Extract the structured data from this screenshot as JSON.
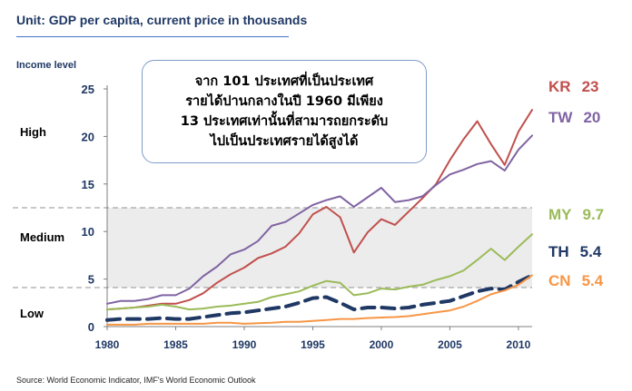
{
  "header": {
    "title": "Unit: GDP per capita, current price in thousands",
    "income_label": "Income level"
  },
  "bands": {
    "high": "High",
    "medium": "Medium",
    "low": "Low"
  },
  "callout": {
    "lines": [
      "จาก 101 ประเทศที่เป็นประเทศ",
      "รายได้ปานกลางในปี 1960 มีเพียง",
      "13 ประเทศเท่านั้นที่สามารถยกระดับ",
      "ไปเป็นประเทศรายได้สูงได้"
    ]
  },
  "source": "Source: World Economic Indicator, IMF's World Economic Outlook",
  "colors": {
    "KR": "#c0504d",
    "TW": "#8064a2",
    "MY": "#9bbb59",
    "TH": "#1f3864",
    "CN": "#f79646",
    "title": "#1f3864",
    "band": "#ececec"
  },
  "chart_data": {
    "type": "line",
    "xlim": [
      1980,
      2011
    ],
    "ylim": [
      0,
      25
    ],
    "x_ticks": [
      1980,
      1985,
      1990,
      1995,
      2000,
      2005,
      2010
    ],
    "y_ticks": [
      0,
      5,
      10,
      15,
      20,
      25
    ],
    "middle_income_band": [
      4.1,
      12.5
    ],
    "x": [
      1980,
      1981,
      1982,
      1983,
      1984,
      1985,
      1986,
      1987,
      1988,
      1989,
      1990,
      1991,
      1992,
      1993,
      1994,
      1995,
      1996,
      1997,
      1998,
      1999,
      2000,
      2001,
      2002,
      2003,
      2004,
      2005,
      2006,
      2007,
      2008,
      2009,
      2010,
      2011
    ],
    "series": [
      {
        "name": "KR",
        "end_label": "23",
        "color": "#c0504d",
        "dashed": false,
        "values": [
          1.8,
          1.9,
          2.0,
          2.2,
          2.4,
          2.4,
          2.8,
          3.5,
          4.6,
          5.5,
          6.2,
          7.2,
          7.7,
          8.4,
          9.8,
          11.8,
          12.6,
          11.5,
          7.8,
          9.9,
          11.3,
          10.7,
          12.1,
          13.5,
          15.0,
          17.5,
          19.7,
          21.6,
          19.2,
          17.0,
          20.5,
          22.8
        ]
      },
      {
        "name": "TW",
        "end_label": "20",
        "color": "#8064a2",
        "dashed": false,
        "values": [
          2.4,
          2.7,
          2.7,
          2.9,
          3.3,
          3.3,
          4.0,
          5.3,
          6.3,
          7.6,
          8.1,
          9.0,
          10.6,
          11.0,
          11.9,
          12.8,
          13.3,
          13.7,
          12.6,
          13.6,
          14.6,
          13.1,
          13.3,
          13.7,
          14.9,
          16.0,
          16.5,
          17.1,
          17.4,
          16.4,
          18.6,
          20.1
        ]
      },
      {
        "name": "MY",
        "end_label": "9.7",
        "color": "#9bbb59",
        "dashed": false,
        "values": [
          1.8,
          1.9,
          2.0,
          2.1,
          2.3,
          2.1,
          1.8,
          1.9,
          2.1,
          2.2,
          2.4,
          2.6,
          3.1,
          3.4,
          3.7,
          4.3,
          4.8,
          4.6,
          3.3,
          3.5,
          4.0,
          3.9,
          4.2,
          4.4,
          4.9,
          5.3,
          5.9,
          7.0,
          8.2,
          7.0,
          8.4,
          9.7
        ]
      },
      {
        "name": "TH",
        "end_label": "5.4",
        "color": "#1f3864",
        "dashed": true,
        "values": [
          0.7,
          0.8,
          0.8,
          0.8,
          0.9,
          0.8,
          0.8,
          1.0,
          1.2,
          1.4,
          1.5,
          1.7,
          1.9,
          2.1,
          2.5,
          3.0,
          3.1,
          2.5,
          1.8,
          2.0,
          2.0,
          1.9,
          2.0,
          2.3,
          2.5,
          2.7,
          3.2,
          3.7,
          4.0,
          3.9,
          4.7,
          5.4
        ]
      },
      {
        "name": "CN",
        "end_label": "5.4",
        "color": "#f79646",
        "dashed": false,
        "values": [
          0.2,
          0.2,
          0.2,
          0.3,
          0.3,
          0.3,
          0.3,
          0.3,
          0.4,
          0.4,
          0.3,
          0.35,
          0.4,
          0.5,
          0.5,
          0.6,
          0.7,
          0.8,
          0.8,
          0.9,
          0.95,
          1.0,
          1.1,
          1.3,
          1.5,
          1.7,
          2.1,
          2.7,
          3.4,
          3.8,
          4.4,
          5.4
        ]
      }
    ]
  }
}
